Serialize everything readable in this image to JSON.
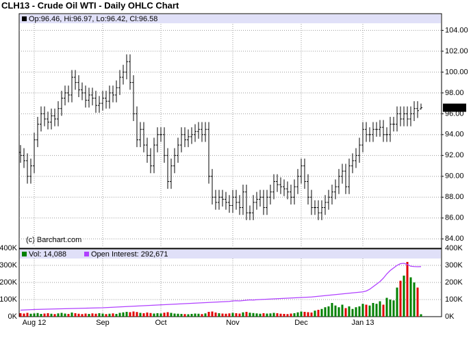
{
  "chart_data": [
    {
      "type": "ohlc",
      "title": "CLH13 - Crude Oil WTI - Daily OHLC Chart",
      "watermark": "(c) Barchart.com",
      "ylim": [
        83.1,
        105.6
      ],
      "yticks": [
        {
          "value": 84,
          "label": "84.00"
        },
        {
          "value": 86,
          "label": "86.00"
        },
        {
          "value": 88,
          "label": "88.00"
        },
        {
          "value": 90,
          "label": "90.00"
        },
        {
          "value": 92,
          "label": "92.00"
        },
        {
          "value": 94,
          "label": "94.00"
        },
        {
          "value": 96,
          "label": "96.00"
        },
        {
          "value": 98,
          "label": "98.00"
        },
        {
          "value": 100,
          "label": "100.00"
        },
        {
          "value": 102,
          "label": "102.00"
        },
        {
          "value": 104,
          "label": "104.00"
        }
      ],
      "grid": true,
      "last_price": 96.58,
      "series": [
        {
          "name": "Op:96.46, Hi:96.97, Lo:96.42, Cl:96.58",
          "color": "#000000",
          "open": [
            92.3,
            92,
            91.5,
            90,
            91,
            93.5,
            95,
            96,
            95.5,
            95.2,
            95.8,
            95.5,
            96.5,
            97.5,
            98,
            97.8,
            99.5,
            99,
            98.3,
            98,
            97.3,
            97.8,
            97.5,
            96.8,
            97,
            97.5,
            97.2,
            98,
            97.8,
            98.5,
            99.5,
            100,
            101,
            99,
            96,
            93.5,
            94.5,
            93,
            92,
            91,
            93,
            94,
            94,
            92,
            89.5,
            91,
            92,
            93,
            94,
            93.5,
            93.8,
            94,
            94.3,
            94.5,
            94,
            94.5,
            90,
            88,
            87.5,
            88,
            87.8,
            87.5,
            87.2,
            88,
            87.5,
            87,
            88.5,
            86.5,
            86.5,
            87.5,
            87.8,
            88,
            87,
            88,
            88.5,
            89.5,
            89.2,
            89,
            88.8,
            88.5,
            88,
            89,
            90,
            91,
            89.5,
            88,
            87,
            87,
            86.5,
            87,
            87.5,
            88,
            88.5,
            89,
            90,
            90.5,
            89,
            91,
            91.5,
            92,
            93,
            94.5,
            94,
            94,
            94.5,
            94.5,
            94.7,
            94,
            94,
            95,
            95,
            96,
            95.5,
            96,
            95.5,
            96,
            96.5,
            96.46
          ],
          "high": [
            93,
            92.7,
            92.2,
            91.7,
            94.2,
            95.7,
            96.7,
            96.7,
            96.2,
            96.5,
            96.5,
            97.2,
            98.2,
            98.7,
            98.7,
            100.2,
            100.2,
            99.7,
            99,
            98.7,
            98.5,
            98.5,
            98.2,
            97.7,
            98.2,
            98.2,
            98.7,
            98.7,
            99.2,
            100.2,
            100.7,
            101.7,
            101.7,
            99.7,
            96.7,
            95.2,
            95.2,
            93.7,
            92.7,
            93.7,
            94.7,
            94.7,
            94.7,
            92.7,
            91.7,
            92.7,
            93.7,
            94.7,
            94.7,
            94.5,
            94.7,
            95,
            95.2,
            95.2,
            95.2,
            95.2,
            90.7,
            88.7,
            88.7,
            88.7,
            88.5,
            88.2,
            88.7,
            88.7,
            88.2,
            89.2,
            89.2,
            87.2,
            88.2,
            88.5,
            88.7,
            88.7,
            88.7,
            89.2,
            90.2,
            90.2,
            89.9,
            89.7,
            89.5,
            89.2,
            89.7,
            90.7,
            91.7,
            91.7,
            90.2,
            88.7,
            87.7,
            87.7,
            87.7,
            88.2,
            88.7,
            89.2,
            89.7,
            90.7,
            91.2,
            91.2,
            91.7,
            92.2,
            92.7,
            93.7,
            95.2,
            95.2,
            94.7,
            95.2,
            95.2,
            95.4,
            95.4,
            94.7,
            95.7,
            95.7,
            96.7,
            96.7,
            96.7,
            96.7,
            96.7,
            97.2,
            97.2,
            96.97
          ],
          "low": [
            91.3,
            90.8,
            89.3,
            89.3,
            90.3,
            92.8,
            94.3,
            94.8,
            94.5,
            94.5,
            94.8,
            94.8,
            95.8,
            96.8,
            97.1,
            97.1,
            98.3,
            97.6,
            97.3,
            96.6,
            96.6,
            96.8,
            96.1,
            96.1,
            96.3,
            96.5,
            96.5,
            97.1,
            97.1,
            97.8,
            98.8,
            99.3,
            98.3,
            95.3,
            92.8,
            92.8,
            92.3,
            91.3,
            90.3,
            90.3,
            92.3,
            93.3,
            91.3,
            88.8,
            88.8,
            90.3,
            91.3,
            92.3,
            92.8,
            92.8,
            93.1,
            93.3,
            93.6,
            93.3,
            93.3,
            89.3,
            87.3,
            86.8,
            86.8,
            87.1,
            86.8,
            86.5,
            86.5,
            86.8,
            86.3,
            86.3,
            85.8,
            85.8,
            85.8,
            86.8,
            87.1,
            86.3,
            86.3,
            87.3,
            87.8,
            88.5,
            88.3,
            88.1,
            87.8,
            87.3,
            87.3,
            88.3,
            89.3,
            88.8,
            87.3,
            86.3,
            86.3,
            85.8,
            85.8,
            86.3,
            86.8,
            87.3,
            87.8,
            88.3,
            89.3,
            88.3,
            88.3,
            90.3,
            90.8,
            91.3,
            92.3,
            93.3,
            93.3,
            93.3,
            93.8,
            93.8,
            93.3,
            93.3,
            93.3,
            94.3,
            94.3,
            94.8,
            94.8,
            94.8,
            94.8,
            95.3,
            95.6,
            96.42
          ],
          "close": [
            92,
            91.5,
            90,
            91,
            93.5,
            95,
            96,
            95.5,
            95.2,
            95.8,
            95.5,
            96.5,
            97.5,
            98,
            97.8,
            99.5,
            99,
            98.3,
            98,
            97.3,
            97.8,
            97.5,
            96.8,
            97,
            97.5,
            97.2,
            98,
            97.8,
            98.5,
            99.5,
            100,
            101,
            99,
            96,
            93.5,
            94.5,
            93,
            92,
            91,
            93,
            94,
            94,
            92,
            89.5,
            91,
            92,
            93,
            94,
            93.5,
            93.8,
            94,
            94.3,
            94.5,
            94,
            94.5,
            90,
            88,
            87.5,
            88,
            87.8,
            87.5,
            87.2,
            88,
            87.5,
            87,
            88.5,
            86.5,
            86.5,
            87.5,
            87.8,
            88,
            87,
            88,
            88.5,
            89.5,
            89.2,
            89,
            88.8,
            88.5,
            88,
            89,
            90,
            91,
            89.5,
            88,
            87,
            87,
            86.5,
            87,
            87.5,
            88,
            88.5,
            89,
            90,
            90.5,
            89,
            91,
            91.5,
            92,
            93,
            94.5,
            94,
            94,
            94.5,
            94.5,
            94.7,
            94,
            94,
            95,
            95,
            96,
            95.5,
            96,
            95.5,
            96,
            96.5,
            96.3,
            96.58
          ]
        }
      ]
    },
    {
      "type": "bar",
      "categories": [
        null,
        null,
        null,
        null,
        "Aug 12",
        null,
        null,
        null,
        null,
        null,
        null,
        null,
        null,
        null,
        null,
        null,
        null,
        null,
        null,
        null,
        null,
        null,
        null,
        null,
        "Sep",
        null,
        null,
        null,
        null,
        null,
        null,
        null,
        null,
        null,
        null,
        null,
        null,
        null,
        null,
        null,
        null,
        "Oct",
        null,
        null,
        null,
        null,
        null,
        null,
        null,
        null,
        null,
        null,
        null,
        null,
        null,
        null,
        null,
        null,
        null,
        null,
        null,
        null,
        "Nov",
        null,
        null,
        null,
        null,
        null,
        null,
        null,
        null,
        null,
        null,
        null,
        null,
        null,
        null,
        null,
        null,
        null,
        null,
        null,
        "Dec",
        null,
        null,
        null,
        null,
        null,
        null,
        null,
        null,
        null,
        null,
        null,
        null,
        null,
        null,
        null,
        null,
        null,
        "Jan 13",
        null,
        null,
        null,
        null,
        null,
        null,
        null,
        null,
        null,
        null,
        null,
        null,
        null,
        null,
        null,
        null,
        null
      ],
      "ylim": [
        0,
        400000
      ],
      "yticks": [
        {
          "value": 0,
          "label": "0K"
        },
        {
          "value": 100000,
          "label": "100K"
        },
        {
          "value": 200000,
          "label": "200K"
        },
        {
          "value": 300000,
          "label": "300K"
        },
        {
          "value": 400000,
          "label": "400K"
        }
      ],
      "grid": true,
      "up_color": "#008000",
      "down_color": "#e00000",
      "series": [
        {
          "name": "Vol: 14,088",
          "color": "#008000",
          "values": [
            20000,
            18000,
            22000,
            17000,
            19000,
            21000,
            16000,
            18000,
            20000,
            17000,
            15000,
            19000,
            22000,
            18000,
            16000,
            24000,
            20000,
            17000,
            15000,
            18000,
            16000,
            19000,
            17000,
            20000,
            18000,
            15000,
            17000,
            19000,
            16000,
            22000,
            25000,
            28000,
            26000,
            30000,
            27000,
            22000,
            20000,
            24000,
            21000,
            18000,
            20000,
            19000,
            23000,
            26000,
            22000,
            18000,
            17000,
            16000,
            15000,
            14000,
            16000,
            18000,
            17000,
            15000,
            19000,
            28000,
            30000,
            24000,
            20000,
            18000,
            17000,
            19000,
            22000,
            20000,
            18000,
            25000,
            28000,
            23000,
            21000,
            19000,
            17000,
            20000,
            18000,
            19000,
            22000,
            20000,
            17000,
            16000,
            15000,
            18000,
            20000,
            25000,
            30000,
            28000,
            26000,
            24000,
            35000,
            40000,
            45000,
            55000,
            60000,
            80000,
            65000,
            55000,
            70000,
            50000,
            60000,
            45000,
            55000,
            60000,
            75000,
            70000,
            65000,
            80000,
            75000,
            90000,
            70000,
            110000,
            100000,
            95000,
            170000,
            210000,
            240000,
            320000,
            230000,
            200000,
            170000,
            14088
          ]
        },
        {
          "name": "Open Interest: 292,671",
          "color": "#b040ff",
          "type": "line",
          "values": [
            38000,
            39000,
            40000,
            41000,
            42000,
            42500,
            43000,
            43500,
            44000,
            44500,
            45000,
            45500,
            46000,
            46500,
            47000,
            47500,
            48000,
            48500,
            49000,
            49500,
            50000,
            50500,
            51000,
            51500,
            52000,
            53000,
            54000,
            55000,
            56000,
            57000,
            58000,
            59000,
            60000,
            61000,
            62000,
            63000,
            64000,
            65000,
            66000,
            67000,
            68000,
            69000,
            70000,
            71000,
            72000,
            73000,
            74000,
            75000,
            76000,
            77000,
            78000,
            79000,
            80000,
            81000,
            82000,
            83000,
            84000,
            85000,
            86000,
            87000,
            88000,
            89000,
            92000,
            93000,
            92000,
            94000,
            96000,
            98000,
            97000,
            99000,
            100000,
            101000,
            102000,
            103000,
            104000,
            105000,
            106000,
            107000,
            108000,
            109000,
            110000,
            111000,
            112000,
            113000,
            114000,
            115000,
            117000,
            119000,
            121000,
            123000,
            125000,
            127000,
            129000,
            131000,
            133000,
            135000,
            137000,
            139000,
            141000,
            143000,
            145000,
            150000,
            160000,
            175000,
            190000,
            205000,
            225000,
            250000,
            270000,
            285000,
            300000,
            310000,
            312000,
            305000,
            295000,
            293000,
            292000,
            292671
          ]
        }
      ]
    }
  ]
}
